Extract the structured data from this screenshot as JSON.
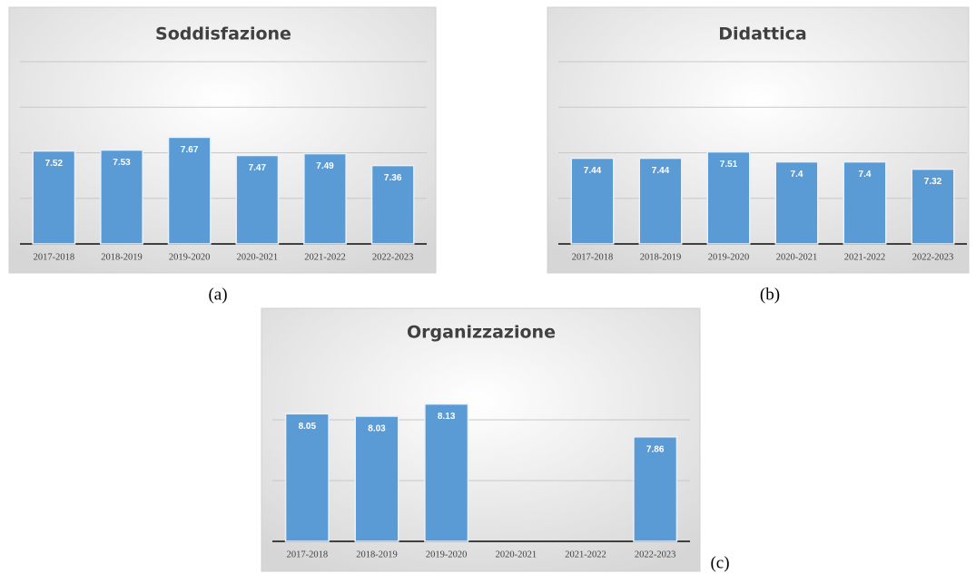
{
  "chart_data": [
    {
      "type": "bar",
      "title": "Soddisfazione",
      "caption": "(a)",
      "categories": [
        "2017-2018",
        "2018-2019",
        "2019-2020",
        "2020-2021",
        "2021-2022",
        "2022-2023"
      ],
      "values": [
        7.52,
        7.53,
        7.67,
        7.47,
        7.49,
        7.36
      ],
      "color": "#5b9bd5",
      "ylim": [
        6.5,
        8.5
      ],
      "yticks": [
        6.5,
        7,
        7.5,
        8,
        8.5
      ],
      "grid": true
    },
    {
      "type": "bar",
      "title": "Didattica",
      "caption": "(b)",
      "categories": [
        "2017-2018",
        "2018-2019",
        "2019-2020",
        "2020-2021",
        "2021-2022",
        "2022-2023"
      ],
      "values": [
        7.44,
        7.44,
        7.51,
        7.4,
        7.4,
        7.32
      ],
      "color": "#5b9bd5",
      "ylim": [
        6.5,
        8.5
      ],
      "yticks": [
        6.5,
        7,
        7.5,
        8,
        8.5
      ],
      "grid": true
    },
    {
      "type": "bar",
      "title": "Organizzazione",
      "caption": "(c)",
      "categories": [
        "2017-2018",
        "2018-2019",
        "2019-2020",
        "2020-2021",
        "2021-2022",
        "2022-2023"
      ],
      "values": [
        8.05,
        8.03,
        8.13,
        null,
        null,
        7.86
      ],
      "color": "#5b9bd5",
      "ylim": [
        7,
        8.5
      ],
      "yticks": [
        7,
        7.5,
        8
      ],
      "grid": true
    }
  ]
}
